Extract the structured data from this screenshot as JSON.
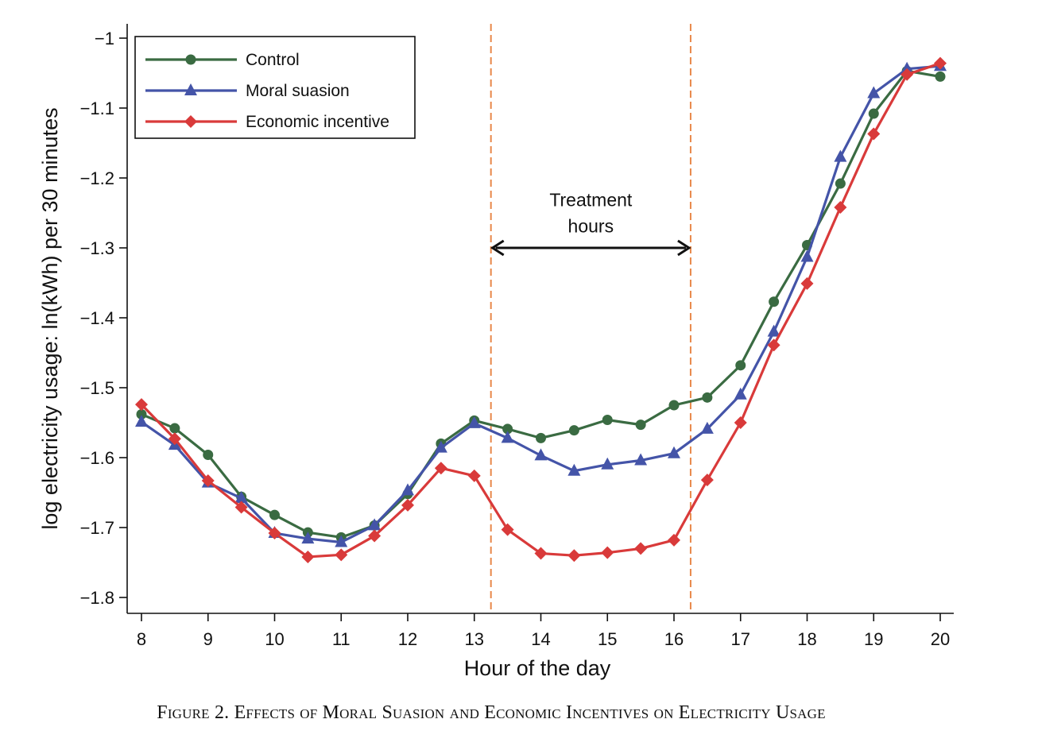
{
  "chart_data": {
    "type": "line",
    "xlabel": "Hour of the day",
    "ylabel": "log electricity usage: ln(kWh) per 30 minutes",
    "xlim": [
      8,
      20
    ],
    "ylim": [
      -1.8,
      -1.0
    ],
    "x_ticks": [
      8,
      9,
      10,
      11,
      12,
      13,
      14,
      15,
      16,
      17,
      18,
      19,
      20
    ],
    "y_ticks": [
      -1.8,
      -1.7,
      -1.6,
      -1.5,
      -1.4,
      -1.3,
      -1.2,
      -1.1,
      -1.0
    ],
    "y_tick_labels": [
      "−1.8",
      "−1.7",
      "−1.6",
      "−1.5",
      "−1.4",
      "−1.3",
      "−1.2",
      "−1.1",
      "−1"
    ],
    "grid": false,
    "legend_position": "top-left",
    "x": [
      8,
      8.5,
      9,
      9.5,
      10,
      10.5,
      11,
      11.5,
      12,
      12.5,
      13,
      13.5,
      14,
      14.5,
      15,
      15.5,
      16,
      16.5,
      17,
      17.5,
      18,
      18.5,
      19,
      19.5,
      20
    ],
    "series": [
      {
        "name": "Control",
        "color": "#3a6b42",
        "marker": "circle",
        "values": [
          -1.538,
          -1.558,
          -1.596,
          -1.656,
          -1.682,
          -1.707,
          -1.714,
          -1.697,
          -1.652,
          -1.58,
          -1.547,
          -1.559,
          -1.572,
          -1.561,
          -1.546,
          -1.553,
          -1.525,
          -1.514,
          -1.468,
          -1.377,
          -1.296,
          -1.208,
          -1.108,
          -1.047,
          -1.055
        ]
      },
      {
        "name": "Moral suasion",
        "color": "#4454a8",
        "marker": "triangle",
        "values": [
          -1.549,
          -1.582,
          -1.636,
          -1.658,
          -1.708,
          -1.716,
          -1.721,
          -1.697,
          -1.647,
          -1.586,
          -1.551,
          -1.572,
          -1.597,
          -1.619,
          -1.61,
          -1.604,
          -1.594,
          -1.559,
          -1.51,
          -1.42,
          -1.313,
          -1.17,
          -1.079,
          -1.044,
          -1.04
        ]
      },
      {
        "name": "Economic incentive",
        "color": "#d93a3a",
        "marker": "diamond",
        "values": [
          -1.524,
          -1.573,
          -1.633,
          -1.671,
          -1.708,
          -1.742,
          -1.739,
          -1.712,
          -1.668,
          -1.615,
          -1.626,
          -1.703,
          -1.737,
          -1.74,
          -1.736,
          -1.73,
          -1.718,
          -1.632,
          -1.55,
          -1.439,
          -1.351,
          -1.242,
          -1.137,
          -1.052,
          -1.036
        ]
      }
    ],
    "annotations": {
      "treatment_label_line1": "Treatment",
      "treatment_label_line2": "hours",
      "treatment_start": 13.25,
      "treatment_end": 16.25,
      "treatment_label_y": -1.245,
      "treatment_arrow_y": -1.3,
      "vline_color": "#e8884a"
    }
  },
  "caption": {
    "prefix": "Figure 2.",
    "text": "Effects of Moral Suasion and Economic Incentives on Electricity Usage"
  }
}
